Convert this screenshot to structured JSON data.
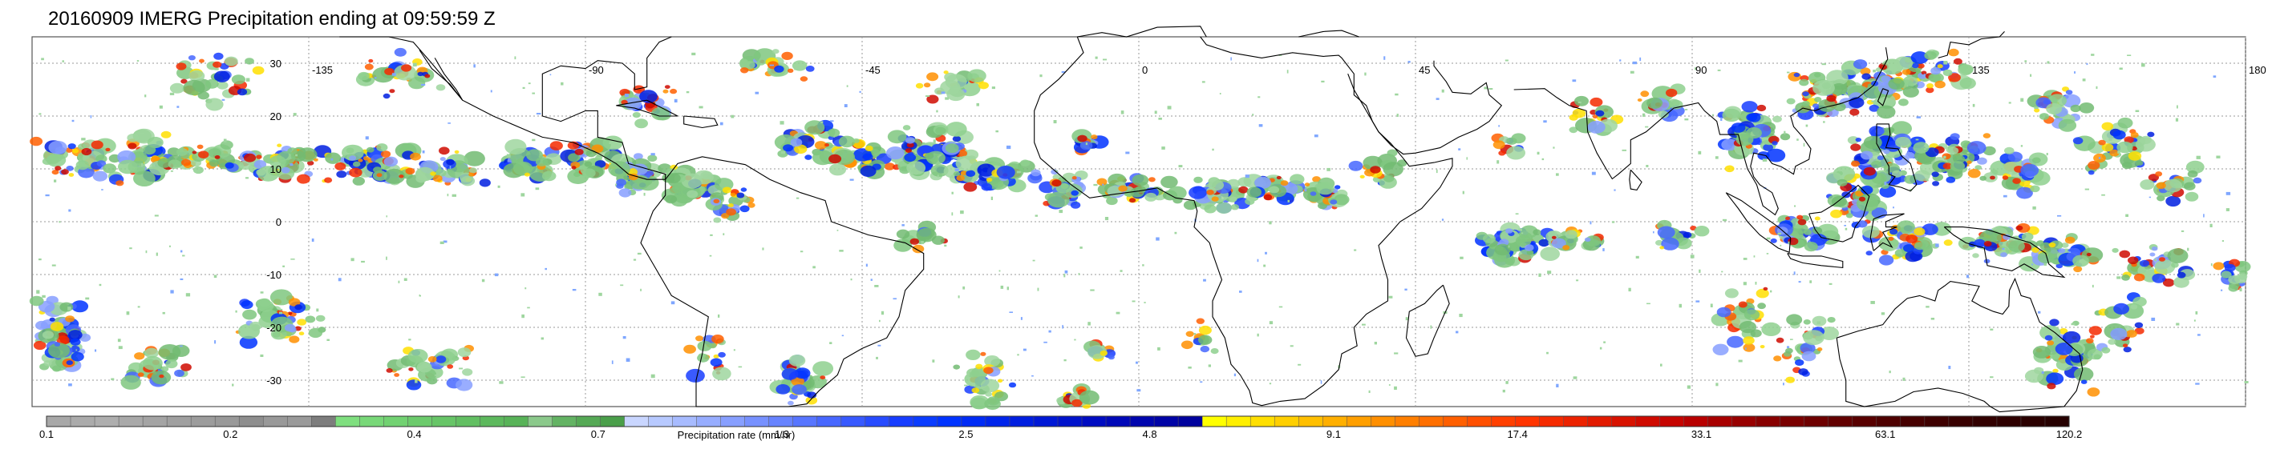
{
  "title": "20160909 IMERG Precipitation ending at 09:59:59 Z",
  "map": {
    "lon_labels": [
      "-135",
      "-90",
      "-45",
      "0",
      "45",
      "90",
      "135",
      "180"
    ],
    "lat_labels": [
      "30",
      "20",
      "10",
      "0",
      "-10",
      "-20",
      "-30"
    ],
    "lon_values": [
      -135,
      -90,
      -45,
      0,
      45,
      90,
      135,
      180
    ],
    "lat_values": [
      30,
      20,
      10,
      0,
      -10,
      -20,
      -30
    ],
    "lon_range": [
      -180,
      180
    ],
    "lat_range": [
      -35,
      35
    ],
    "grid": "dotted",
    "land_outline_color": "#000000",
    "background_color": "#ffffff"
  },
  "colorbar": {
    "label": "Precipitation rate (mm/hr)",
    "tick_labels": [
      "0.1",
      "0.2",
      "0.4",
      "0.7",
      "1.3",
      "2.5",
      "4.8",
      "9.1",
      "17.4",
      "33.1",
      "63.1",
      "120.2"
    ],
    "tick_values": [
      0.1,
      0.2,
      0.4,
      0.7,
      1.3,
      2.5,
      4.8,
      9.1,
      17.4,
      33.1,
      63.1,
      120.2
    ],
    "colors": [
      "#a8a8a8",
      "#ababab",
      "#aeaeae",
      "#a9a9a9",
      "#a4a4a4",
      "#a0a0a0",
      "#9c9c9c",
      "#999999",
      "#8e8e8e",
      "#999999",
      "#9a9a9a",
      "#7d7d7d",
      "#7fdf7f",
      "#78d878",
      "#72d272",
      "#6ccb6c",
      "#67c567",
      "#62bf62",
      "#5db95d",
      "#58b358",
      "#8bc98b",
      "#63b363",
      "#55a955",
      "#4a9f4a",
      "#c9d6ff",
      "#b7c9ff",
      "#a7bbff",
      "#97adff",
      "#879fff",
      "#7791ff",
      "#6783ff",
      "#5775ff",
      "#4767ff",
      "#3759ff",
      "#274bff",
      "#173dff",
      "#0a3cff",
      "#0033ff",
      "#002bf5",
      "#0024eb",
      "#001ee0",
      "#0018d6",
      "#0012cc",
      "#000cc2",
      "#0008b8",
      "#0005ae",
      "#0003a6",
      "#00019e",
      "#ffff00",
      "#ffef00",
      "#ffdf00",
      "#ffcf00",
      "#ffbf00",
      "#ffaf00",
      "#ff9f00",
      "#ff8f00",
      "#ff7f00",
      "#ff6f00",
      "#ff5f00",
      "#ff4f00",
      "#ff3f00",
      "#ff3400",
      "#f52a00",
      "#ec2200",
      "#e21a00",
      "#d81200",
      "#cf0a00",
      "#c60400",
      "#b80000",
      "#a80000",
      "#980000",
      "#880000",
      "#7a0000",
      "#6e0000",
      "#620000",
      "#580000",
      "#4e0000",
      "#460000",
      "#3e0000",
      "#380000",
      "#320000",
      "#2e0000",
      "#2a0000",
      "#260000"
    ]
  }
}
